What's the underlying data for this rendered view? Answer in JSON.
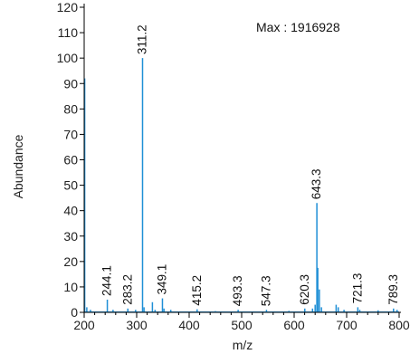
{
  "chart_data": {
    "type": "line",
    "subtype": "mass-spectrum-stick",
    "xlabel": "m/z",
    "ylabel": "Abundance",
    "xlim": [
      200,
      800
    ],
    "ylim": [
      0,
      120
    ],
    "x_ticks": [
      200,
      300,
      400,
      500,
      600,
      700,
      800
    ],
    "x_tick_labels": [
      "200",
      "300",
      "400",
      "500",
      "600",
      "700",
      "800"
    ],
    "y_ticks": [
      0,
      10,
      20,
      30,
      40,
      50,
      60,
      70,
      80,
      90,
      100,
      110,
      120
    ],
    "y_tick_labels": [
      "0",
      "10",
      "20",
      "30",
      "40",
      "50",
      "60",
      "70",
      "80",
      "90",
      "100",
      "110",
      "120"
    ],
    "annotation": "Max : 1916928",
    "line_color": "#1f8fd6",
    "axis_color": "#000000",
    "peaks": [
      {
        "mz": 201,
        "abundance": 92
      },
      {
        "mz": 205,
        "abundance": 2
      },
      {
        "mz": 212,
        "abundance": 1
      },
      {
        "mz": 244.1,
        "abundance": 5,
        "label": "244.1"
      },
      {
        "mz": 255,
        "abundance": 1
      },
      {
        "mz": 283.2,
        "abundance": 1.5,
        "label": "283.2"
      },
      {
        "mz": 298,
        "abundance": 1
      },
      {
        "mz": 311.2,
        "abundance": 100,
        "label": "311.2"
      },
      {
        "mz": 314,
        "abundance": 2
      },
      {
        "mz": 330,
        "abundance": 4
      },
      {
        "mz": 335,
        "abundance": 1
      },
      {
        "mz": 349.1,
        "abundance": 5.5,
        "label": "349.1"
      },
      {
        "mz": 352,
        "abundance": 1.5
      },
      {
        "mz": 365,
        "abundance": 1
      },
      {
        "mz": 415.2,
        "abundance": 1.2,
        "label": "415.2"
      },
      {
        "mz": 450,
        "abundance": 0.5
      },
      {
        "mz": 493.3,
        "abundance": 1,
        "label": "493.3"
      },
      {
        "mz": 547.3,
        "abundance": 1,
        "label": "547.3"
      },
      {
        "mz": 590,
        "abundance": 0.6
      },
      {
        "mz": 620.3,
        "abundance": 1.5,
        "label": "620.3"
      },
      {
        "mz": 635,
        "abundance": 1.5
      },
      {
        "mz": 640,
        "abundance": 3
      },
      {
        "mz": 643.3,
        "abundance": 43,
        "label": "643.3"
      },
      {
        "mz": 645,
        "abundance": 17.5
      },
      {
        "mz": 648,
        "abundance": 9
      },
      {
        "mz": 652,
        "abundance": 2
      },
      {
        "mz": 680,
        "abundance": 3
      },
      {
        "mz": 684,
        "abundance": 2
      },
      {
        "mz": 695,
        "abundance": 1
      },
      {
        "mz": 721.3,
        "abundance": 2,
        "label": "721.3"
      },
      {
        "mz": 725,
        "abundance": 1
      },
      {
        "mz": 760,
        "abundance": 0.8
      },
      {
        "mz": 789.3,
        "abundance": 1.5,
        "label": "789.3"
      },
      {
        "mz": 796,
        "abundance": 1
      }
    ]
  }
}
